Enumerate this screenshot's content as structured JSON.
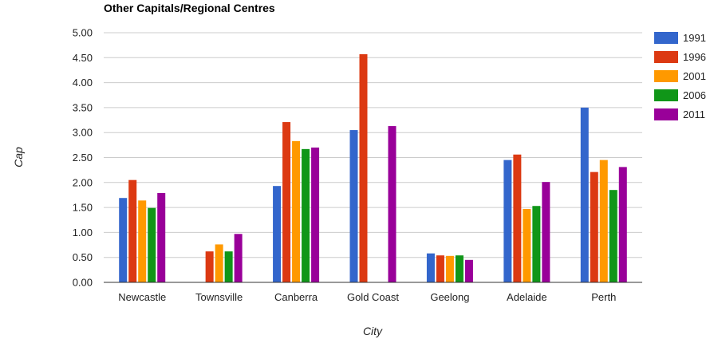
{
  "chart_data": {
    "type": "bar",
    "title": "Other Capitals/Regional Centres",
    "xlabel": "City",
    "ylabel": "Cap",
    "ylim": [
      0,
      5
    ],
    "yticks": [
      "0.00",
      "0.50",
      "1.00",
      "1.50",
      "2.00",
      "2.50",
      "3.00",
      "3.50",
      "4.00",
      "4.50",
      "5.00"
    ],
    "grid": true,
    "legend_position": "right",
    "categories": [
      "Newcastle",
      "Townsville",
      "Canberra",
      "Gold Coast",
      "Geelong",
      "Adelaide",
      "Perth"
    ],
    "series": [
      {
        "name": "1991",
        "color": "#3366cc",
        "values": [
          1.69,
          null,
          1.93,
          3.05,
          0.58,
          2.45,
          3.5
        ]
      },
      {
        "name": "1996",
        "color": "#dc3912",
        "values": [
          2.05,
          0.62,
          3.21,
          4.57,
          0.54,
          2.56,
          2.21
        ]
      },
      {
        "name": "2001",
        "color": "#ff9900",
        "values": [
          1.64,
          0.76,
          2.83,
          null,
          0.53,
          1.47,
          2.45
        ]
      },
      {
        "name": "2006",
        "color": "#109618",
        "values": [
          1.49,
          0.62,
          2.67,
          null,
          0.54,
          1.53,
          1.85
        ]
      },
      {
        "name": "2011",
        "color": "#990099",
        "values": [
          1.79,
          0.97,
          2.7,
          3.13,
          0.45,
          2.01,
          2.31
        ]
      }
    ]
  }
}
